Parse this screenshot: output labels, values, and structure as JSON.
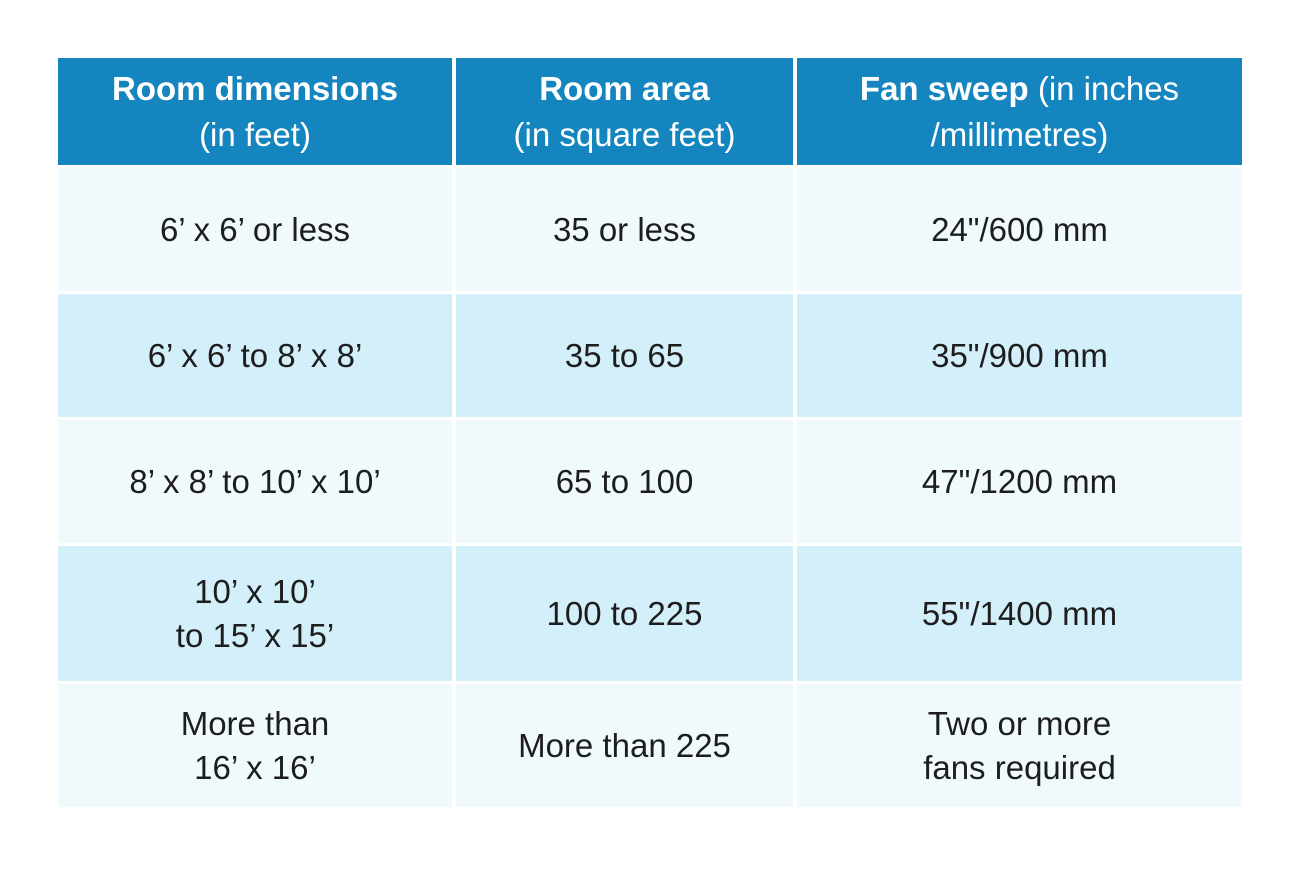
{
  "table": {
    "colors": {
      "header_bg": "#1485bf",
      "header_text": "#ffffff",
      "row_light": "#f0fafd",
      "row_shaded": "#d3effa",
      "body_text": "#1d1d1d",
      "page_bg": "#ffffff",
      "grid_line": "#ffffff"
    },
    "headers": [
      {
        "bold": "Room dimensions",
        "bold_suffix": "",
        "line2": "(in feet)"
      },
      {
        "bold": "Room area",
        "bold_suffix": "",
        "line2": "(in square feet)"
      },
      {
        "bold": "Fan sweep",
        "bold_suffix": " (in inches",
        "line2": "/millimetres)"
      }
    ],
    "rows": [
      {
        "cells": [
          "6’ x 6’ or less",
          "35 or less",
          "24\"/600 mm"
        ]
      },
      {
        "cells": [
          "6’ x 6’ to 8’ x 8’",
          "35 to 65",
          "35\"/900 mm"
        ]
      },
      {
        "cells": [
          "8’ x 8’ to 10’ x 10’",
          "65 to 100",
          "47\"/1200 mm"
        ]
      },
      {
        "cells": [
          "10’ x 10’\nto 15’ x 15’",
          "100 to 225",
          "55\"/1400 mm"
        ]
      },
      {
        "cells": [
          "More than\n16’ x 16’",
          "More than 225",
          "Two or more\nfans required"
        ]
      }
    ]
  },
  "chart_data": {
    "type": "table",
    "columns": [
      "Room dimensions (in feet)",
      "Room area (in square feet)",
      "Fan sweep (in inches /millimetres)"
    ],
    "rows": [
      [
        "6’ x 6’ or less",
        "35 or less",
        "24\"/600 mm"
      ],
      [
        "6’ x 6’ to 8’ x 8’",
        "35 to 65",
        "35\"/900 mm"
      ],
      [
        "8’ x 8’ to 10’ x 10’",
        "65 to 100",
        "47\"/1200 mm"
      ],
      [
        "10’ x 10’ to 15’ x 15’",
        "100 to 225",
        "55\"/1400 mm"
      ],
      [
        "More than 16’ x 16’",
        "More than 225",
        "Two or more fans required"
      ]
    ]
  }
}
